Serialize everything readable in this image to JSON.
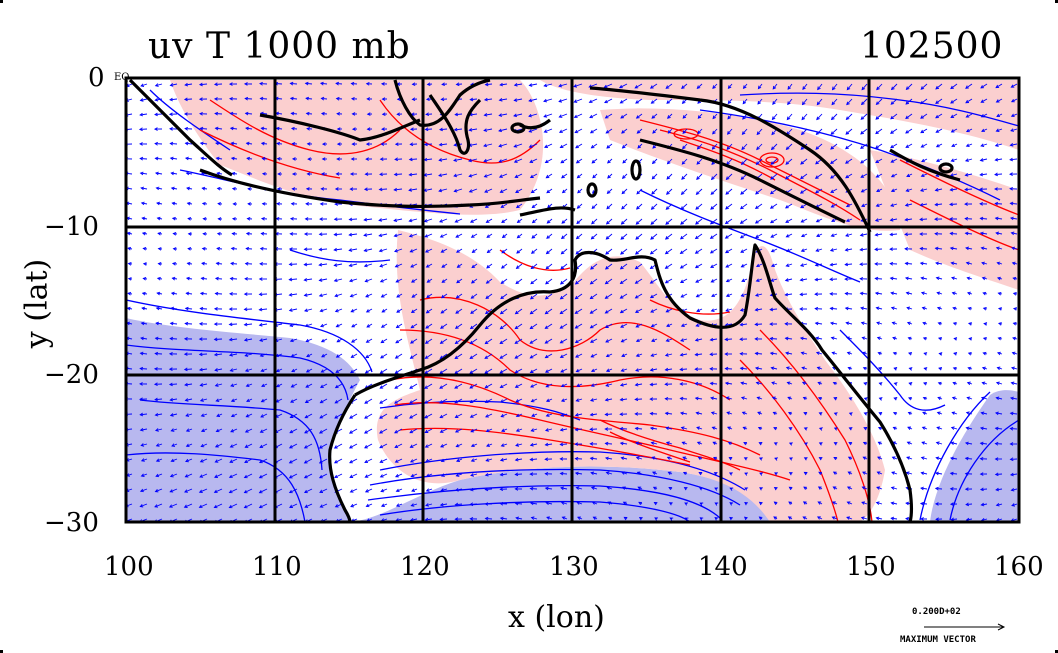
{
  "header": {
    "title_left": "uv T 1000 mb",
    "title_right": "102500"
  },
  "axes": {
    "xlabel": "x (lon)",
    "ylabel": "y (lat)",
    "x_ticks": [
      "100",
      "110",
      "120",
      "130",
      "140",
      "150",
      "160"
    ],
    "y_ticks": [
      "0",
      "−10",
      "−20",
      "−30"
    ],
    "x_range": [
      100,
      160
    ],
    "y_range": [
      -30,
      0
    ],
    "grid": true
  },
  "map": {
    "region": "Maritime Continent and northern Australia",
    "equator_label": "EQ",
    "warm_fill": "#fbcfcf",
    "cold_fill": "#b8b8ef",
    "warm_contour": "#ff0000",
    "cold_contour": "#0000ff",
    "coastline": "#000000",
    "vector_color": "#0000ff"
  },
  "legend": {
    "vector_value": "0.200D+02",
    "vector_label": "MAXIMUM VECTOR"
  }
}
